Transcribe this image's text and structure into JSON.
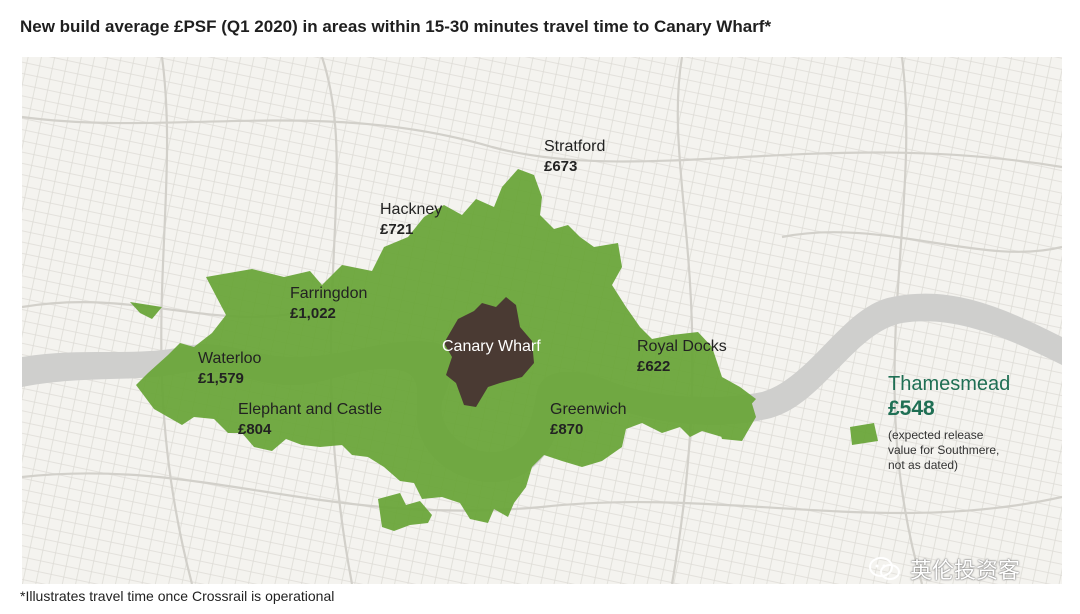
{
  "title": "New build average £PSF (Q1 2020) in areas within 15-30 minutes travel time to Canary Wharf*",
  "map": {
    "hub": "Canary Wharf",
    "areas": [
      {
        "id": "stratford",
        "name": "Stratford",
        "price": "£673"
      },
      {
        "id": "hackney",
        "name": "Hackney",
        "price": "£721"
      },
      {
        "id": "farringdon",
        "name": "Farringdon",
        "price": "£1,022"
      },
      {
        "id": "waterloo",
        "name": "Waterloo",
        "price": "£1,579"
      },
      {
        "id": "elephant",
        "name": "Elephant and Castle",
        "price": "£804"
      },
      {
        "id": "greenwich",
        "name": "Greenwich",
        "price": "£870"
      },
      {
        "id": "royal-docks",
        "name": "Royal Docks",
        "price": "£622"
      }
    ],
    "highlight": {
      "name": "Thamesmead",
      "price": "£548",
      "note": "(expected release\nvalue for Southmere,\nnot as dated)"
    },
    "colors": {
      "travel_zone": "#6aa53a",
      "hub": "#4a3a33",
      "river": "#cfcfcd",
      "highlight_text": "#1f6f54"
    }
  },
  "footnote": "*Illustrates travel time once Crossrail is operational",
  "watermark": "英伦投资客"
}
